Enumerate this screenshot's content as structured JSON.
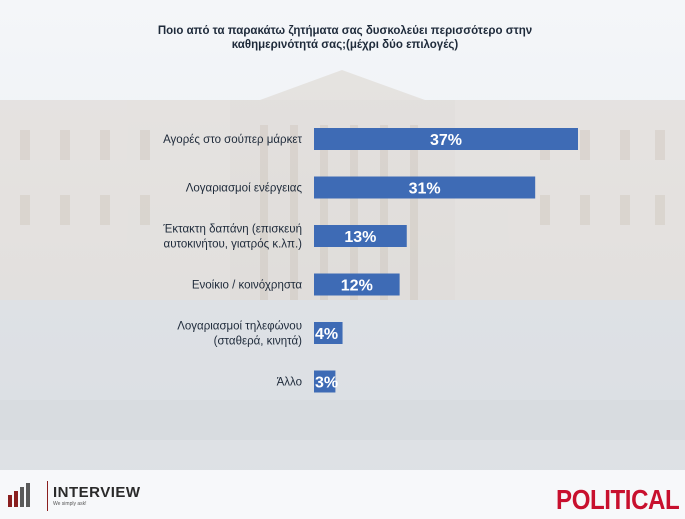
{
  "footer": {
    "logo_name": "INTERVIEW",
    "logo_tagline": "We simply ask!",
    "brand": "POLITICAL",
    "brand_color": "#c8102e"
  },
  "chart_data": {
    "type": "bar",
    "orientation": "horizontal",
    "title": "Ποιο από τα παρακάτω ζητήματα σας δυσκολεύει περισσότερο στην καθημερινότητά σας;(μέχρι δύο επιλογές)",
    "categories": [
      [
        "Αγορές στο σούπερ μάρκετ"
      ],
      [
        "Λογαριασμοί ενέργειας"
      ],
      [
        "Έκτακτη δαπάνη (επισκευή",
        "αυτοκινήτου, γιατρός κ.λπ.)"
      ],
      [
        "Ενοίκιο / κοινόχρηστα"
      ],
      [
        "Λογαριασμοί τηλεφώνου",
        "(σταθερά, κινητά)"
      ],
      [
        "Άλλο"
      ]
    ],
    "values": [
      37,
      31,
      13,
      12,
      4,
      3
    ],
    "value_labels": [
      "37%",
      "31%",
      "13%",
      "12%",
      "4%",
      "3%"
    ],
    "unit": "%",
    "xlim": [
      0,
      40
    ],
    "bar_color": "#3e6bb5",
    "grid": false,
    "legend": "none"
  }
}
